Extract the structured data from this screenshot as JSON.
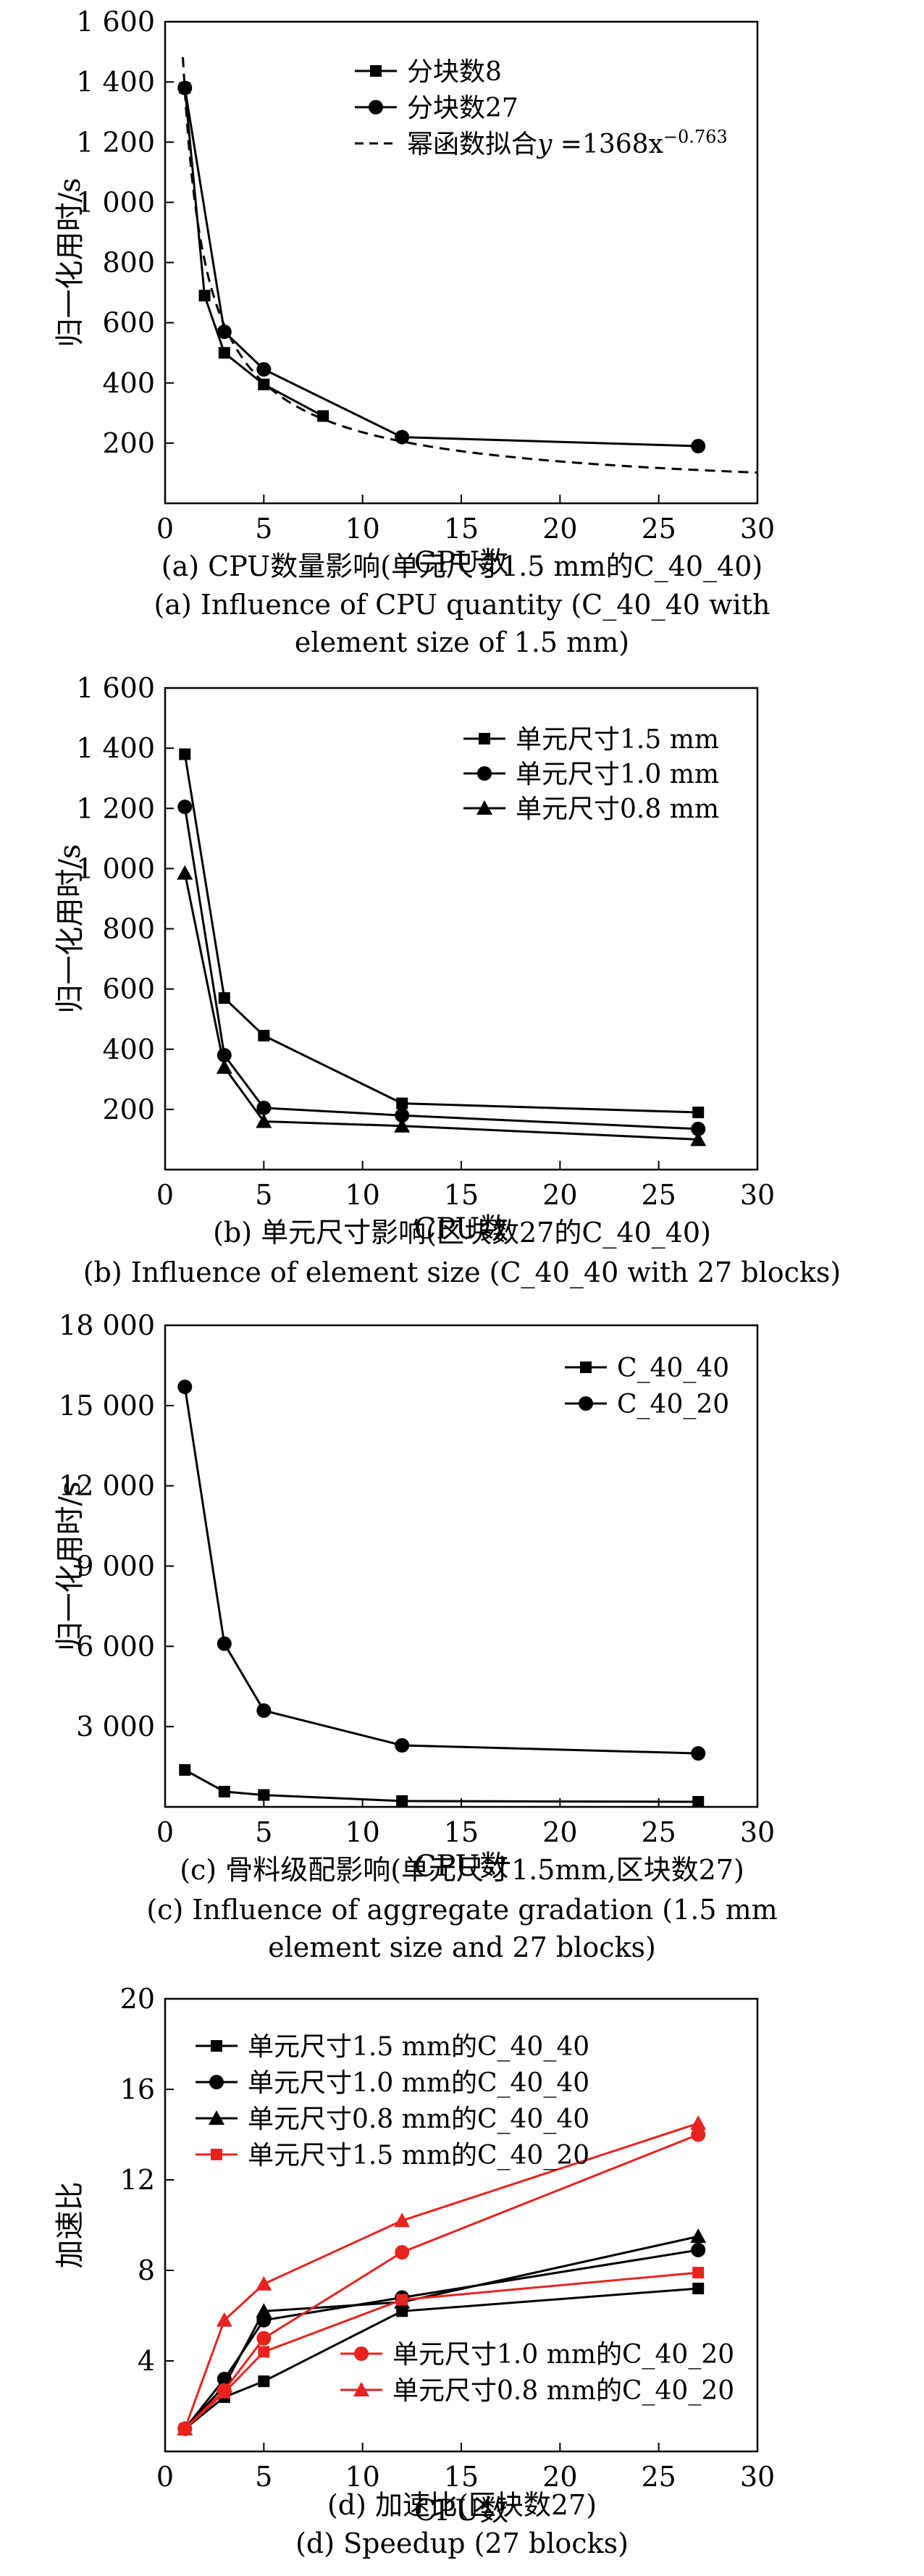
{
  "chart_data": [
    {
      "id": "a",
      "type": "line",
      "xlabel": "CPU数",
      "ylabel": "归一化用时/s",
      "xlim": [
        0,
        30
      ],
      "ylim": [
        0,
        1600
      ],
      "xticks": [
        0,
        5,
        10,
        15,
        20,
        25,
        30
      ],
      "yticks": [
        200,
        400,
        600,
        800,
        1000,
        1200,
        1400,
        1600
      ],
      "ytick_labels": [
        "200",
        "400",
        "600",
        "800",
        "1 000",
        "1 200",
        "1 400",
        "1 600"
      ],
      "legend_position": "top-right",
      "series": [
        {
          "name": "分块数8",
          "marker": "square",
          "color": "#000000",
          "style": "solid",
          "x": [
            1,
            2,
            3,
            5,
            8
          ],
          "y": [
            1380,
            690,
            500,
            395,
            290
          ]
        },
        {
          "name": "分块数27",
          "marker": "circle",
          "color": "#000000",
          "style": "solid",
          "x": [
            1,
            3,
            5,
            12,
            27
          ],
          "y": [
            1380,
            570,
            445,
            220,
            190
          ]
        },
        {
          "name": "幂函数拟合",
          "equation": {
            "prefix": "y",
            "mid": " =1368x",
            "exp": "−0.763"
          },
          "marker": "none",
          "color": "#000000",
          "style": "dashed",
          "fit": {
            "a": 1368,
            "b": -0.763
          },
          "xrange": [
            0.9,
            30
          ]
        }
      ],
      "caption_cn": "(a) CPU数量影响(单元尺寸1.5 mm的C_40_40)",
      "caption_en": [
        "(a) Influence of CPU quantity (C_40_40 with",
        "element size of 1.5 mm)"
      ]
    },
    {
      "id": "b",
      "type": "line",
      "xlabel": "CPU数",
      "ylabel": "归一化用时/s",
      "xlim": [
        0,
        30
      ],
      "ylim": [
        0,
        1600
      ],
      "xticks": [
        0,
        5,
        10,
        15,
        20,
        25,
        30
      ],
      "yticks": [
        200,
        400,
        600,
        800,
        1000,
        1200,
        1400,
        1600
      ],
      "ytick_labels": [
        "200",
        "400",
        "600",
        "800",
        "1 000",
        "1 200",
        "1 400",
        "1 600"
      ],
      "legend_position": "top-right",
      "series": [
        {
          "name": "单元尺寸1.5 mm",
          "marker": "square",
          "color": "#000000",
          "style": "solid",
          "x": [
            1,
            3,
            5,
            12,
            27
          ],
          "y": [
            1380,
            570,
            445,
            220,
            190
          ]
        },
        {
          "name": "单元尺寸1.0 mm",
          "marker": "circle",
          "color": "#000000",
          "style": "solid",
          "x": [
            1,
            3,
            5,
            12,
            27
          ],
          "y": [
            1205,
            380,
            205,
            180,
            135
          ]
        },
        {
          "name": "单元尺寸0.8 mm",
          "marker": "triangle",
          "color": "#000000",
          "style": "solid",
          "x": [
            1,
            3,
            5,
            12,
            27
          ],
          "y": [
            985,
            340,
            160,
            145,
            100
          ]
        }
      ],
      "caption_cn": "(b) 单元尺寸影响(区块数27的C_40_40)",
      "caption_en": [
        "(b) Influence of element size (C_40_40 with 27 blocks)"
      ]
    },
    {
      "id": "c",
      "type": "line",
      "xlabel": "CPU数",
      "ylabel": "归一化用时/s",
      "xlim": [
        0,
        30
      ],
      "ylim": [
        0,
        18000
      ],
      "xticks": [
        0,
        5,
        10,
        15,
        20,
        25,
        30
      ],
      "yticks": [
        3000,
        6000,
        9000,
        12000,
        15000,
        18000
      ],
      "ytick_labels": [
        "3 000",
        "6 000",
        "9 000",
        "12 000",
        "15 000",
        "18 000"
      ],
      "legend_position": "top-right",
      "series": [
        {
          "name": "C_40_40",
          "marker": "square",
          "color": "#000000",
          "style": "solid",
          "x": [
            1,
            3,
            5,
            12,
            27
          ],
          "y": [
            1380,
            570,
            445,
            220,
            190
          ]
        },
        {
          "name": "C_40_20",
          "marker": "circle",
          "color": "#000000",
          "style": "solid",
          "x": [
            1,
            3,
            5,
            12,
            27
          ],
          "y": [
            15700,
            6100,
            3600,
            2300,
            2000
          ]
        }
      ],
      "caption_cn": "(c) 骨料级配影响(单元尺寸1.5mm,区块数27)",
      "caption_en": [
        "(c) Influence of aggregate gradation (1.5 mm",
        "element size and 27 blocks)"
      ]
    },
    {
      "id": "d",
      "type": "line",
      "xlabel": "CPU数",
      "ylabel": "加速比",
      "xlim": [
        0,
        30
      ],
      "ylim": [
        0,
        20
      ],
      "xticks": [
        0,
        5,
        10,
        15,
        20,
        25,
        30
      ],
      "yticks": [
        4,
        8,
        12,
        16,
        20
      ],
      "ytick_labels": [
        "4",
        "8",
        "12",
        "16",
        "20"
      ],
      "legend_position": "top-left; bottom-right",
      "series": [
        {
          "name": "单元尺寸1.5 mm的C_40_40",
          "marker": "square",
          "color": "#000000",
          "style": "solid",
          "x": [
            1,
            3,
            5,
            12,
            27
          ],
          "y": [
            1.0,
            2.4,
            3.1,
            6.2,
            7.2
          ]
        },
        {
          "name": "单元尺寸1.0 mm的C_40_40",
          "marker": "circle",
          "color": "#000000",
          "style": "solid",
          "x": [
            1,
            3,
            5,
            12,
            27
          ],
          "y": [
            1.0,
            3.2,
            5.8,
            6.8,
            8.9
          ]
        },
        {
          "name": "单元尺寸0.8 mm的C_40_40",
          "marker": "triangle",
          "color": "#000000",
          "style": "solid",
          "x": [
            1,
            3,
            5,
            12,
            27
          ],
          "y": [
            1.0,
            2.9,
            6.2,
            6.6,
            9.5
          ]
        },
        {
          "name": "单元尺寸1.5 mm的C_40_20",
          "marker": "square",
          "color": "#e8231f",
          "style": "solid",
          "x": [
            1,
            3,
            5,
            12,
            27
          ],
          "y": [
            1.0,
            2.6,
            4.4,
            6.7,
            7.9
          ]
        },
        {
          "name": "单元尺寸1.0 mm的C_40_20",
          "marker": "circle",
          "color": "#e8231f",
          "style": "solid",
          "x": [
            1,
            3,
            5,
            12,
            27
          ],
          "y": [
            1.0,
            2.7,
            5.0,
            8.8,
            14.0
          ]
        },
        {
          "name": "单元尺寸0.8 mm的C_40_20",
          "marker": "triangle",
          "color": "#e8231f",
          "style": "solid",
          "x": [
            1,
            3,
            5,
            12,
            27
          ],
          "y": [
            1.0,
            5.8,
            7.4,
            10.2,
            14.5
          ]
        }
      ],
      "caption_cn": "(d) 加速比(区块数27)",
      "caption_en": [
        "(d) Speedup (27 blocks)"
      ]
    }
  ]
}
